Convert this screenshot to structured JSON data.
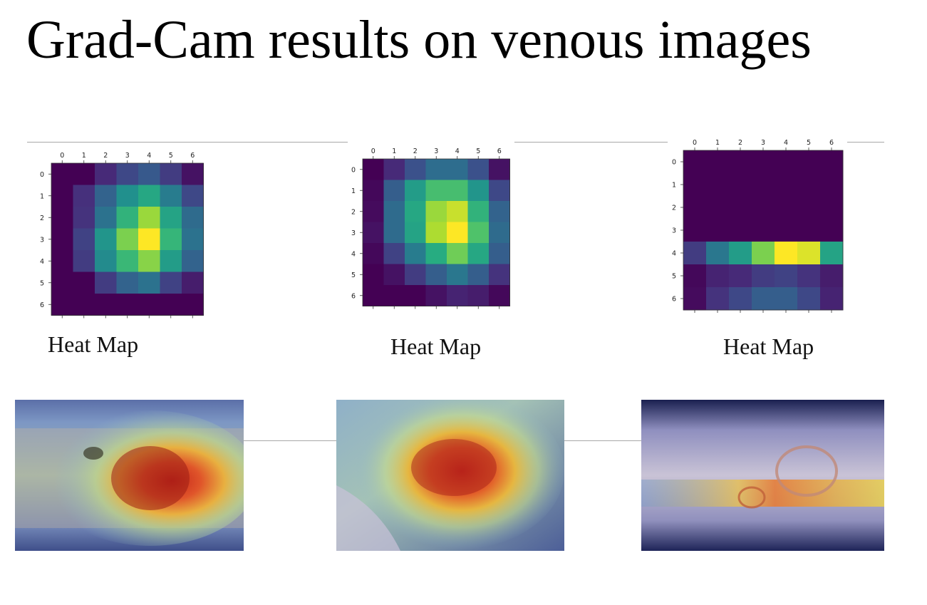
{
  "slide": {
    "title": "Grad-Cam results on venous images"
  },
  "heatmaps": [
    {
      "caption": "Heat Map"
    },
    {
      "caption": "Heat Map"
    },
    {
      "caption": "Heat Map"
    }
  ],
  "chart_data": [
    {
      "type": "heatmap",
      "title": "",
      "x_ticks": [
        "0",
        "1",
        "2",
        "3",
        "4",
        "5",
        "6"
      ],
      "y_ticks": [
        "0",
        "1",
        "2",
        "3",
        "4",
        "5",
        "6"
      ],
      "colormap": "viridis",
      "vrange": [
        0,
        1
      ],
      "values": [
        [
          0.0,
          0.0,
          0.12,
          0.22,
          0.28,
          0.18,
          0.05
        ],
        [
          0.0,
          0.14,
          0.32,
          0.5,
          0.6,
          0.42,
          0.22
        ],
        [
          0.0,
          0.15,
          0.38,
          0.65,
          0.85,
          0.58,
          0.35
        ],
        [
          0.0,
          0.2,
          0.52,
          0.8,
          1.0,
          0.66,
          0.38
        ],
        [
          0.0,
          0.18,
          0.48,
          0.67,
          0.82,
          0.55,
          0.32
        ],
        [
          0.0,
          0.0,
          0.18,
          0.32,
          0.38,
          0.2,
          0.08
        ],
        [
          0.0,
          0.0,
          0.0,
          0.0,
          0.0,
          0.0,
          0.0
        ]
      ]
    },
    {
      "type": "heatmap",
      "title": "",
      "x_ticks": [
        "0",
        "1",
        "2",
        "3",
        "4",
        "5",
        "6"
      ],
      "y_ticks": [
        "0",
        "1",
        "2",
        "3",
        "4",
        "5",
        "6"
      ],
      "colormap": "viridis",
      "vrange": [
        0,
        1
      ],
      "values": [
        [
          0.0,
          0.12,
          0.25,
          0.36,
          0.36,
          0.25,
          0.05
        ],
        [
          0.02,
          0.3,
          0.55,
          0.7,
          0.7,
          0.52,
          0.22
        ],
        [
          0.03,
          0.35,
          0.6,
          0.85,
          0.92,
          0.65,
          0.32
        ],
        [
          0.05,
          0.35,
          0.58,
          0.88,
          1.0,
          0.72,
          0.35
        ],
        [
          0.02,
          0.2,
          0.42,
          0.62,
          0.78,
          0.6,
          0.3
        ],
        [
          0.0,
          0.05,
          0.18,
          0.3,
          0.4,
          0.3,
          0.15
        ],
        [
          0.0,
          0.0,
          0.0,
          0.05,
          0.1,
          0.08,
          0.02
        ]
      ]
    },
    {
      "type": "heatmap",
      "title": "",
      "x_ticks": [
        "0",
        "1",
        "2",
        "3",
        "4",
        "5",
        "6"
      ],
      "y_ticks": [
        "0",
        "1",
        "2",
        "3",
        "4",
        "5",
        "6"
      ],
      "colormap": "viridis",
      "vrange": [
        0,
        1
      ],
      "values": [
        [
          0.0,
          0.0,
          0.0,
          0.0,
          0.0,
          0.0,
          0.0
        ],
        [
          0.0,
          0.0,
          0.0,
          0.0,
          0.0,
          0.0,
          0.0
        ],
        [
          0.0,
          0.0,
          0.0,
          0.0,
          0.0,
          0.0,
          0.0
        ],
        [
          0.0,
          0.0,
          0.0,
          0.0,
          0.0,
          0.0,
          0.0
        ],
        [
          0.18,
          0.4,
          0.55,
          0.8,
          1.0,
          0.95,
          0.58
        ],
        [
          0.02,
          0.1,
          0.12,
          0.18,
          0.2,
          0.15,
          0.08
        ],
        [
          0.03,
          0.15,
          0.22,
          0.3,
          0.3,
          0.22,
          0.1
        ]
      ]
    }
  ],
  "overlays": [
    {
      "alt": "Grad-CAM overlay on venous ulcer image 1"
    },
    {
      "alt": "Grad-CAM overlay on venous ulcer image 2"
    },
    {
      "alt": "Grad-CAM overlay on venous ulcer image 3"
    }
  ]
}
